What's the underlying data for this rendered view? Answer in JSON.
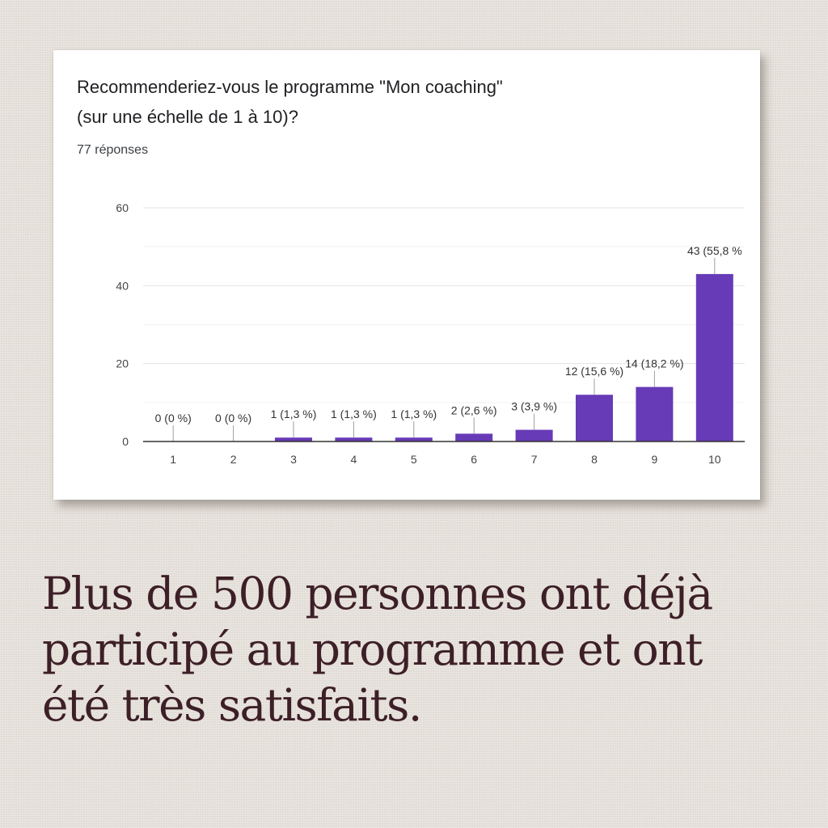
{
  "card": {
    "question_line1": "Recommenderiez-vous le programme \"Mon coaching\"",
    "question_line2": "(sur une échelle de 1 à 10)?",
    "responses": "77 réponses"
  },
  "chart_data": {
    "type": "bar",
    "categories": [
      "1",
      "2",
      "3",
      "4",
      "5",
      "6",
      "7",
      "8",
      "9",
      "10"
    ],
    "values": [
      0,
      0,
      1,
      1,
      1,
      2,
      3,
      12,
      14,
      43
    ],
    "data_labels": [
      "0 (0 %)",
      "0 (0 %)",
      "1 (1,3 %)",
      "1 (1,3 %)",
      "1 (1,3 %)",
      "2 (2,6 %)",
      "3 (3,9 %)",
      "12 (15,6 %)",
      "14 (18,2 %)",
      "43 (55,8 %"
    ],
    "yticks": [
      0,
      20,
      40,
      60
    ],
    "ylim": [
      0,
      60
    ],
    "grid": true,
    "bar_color": "#673ab7"
  },
  "tagline": {
    "line1": "Plus de 500 personnes ont déjà",
    "line2": "participé au programme et ont",
    "line3": "été très satisfaits."
  }
}
